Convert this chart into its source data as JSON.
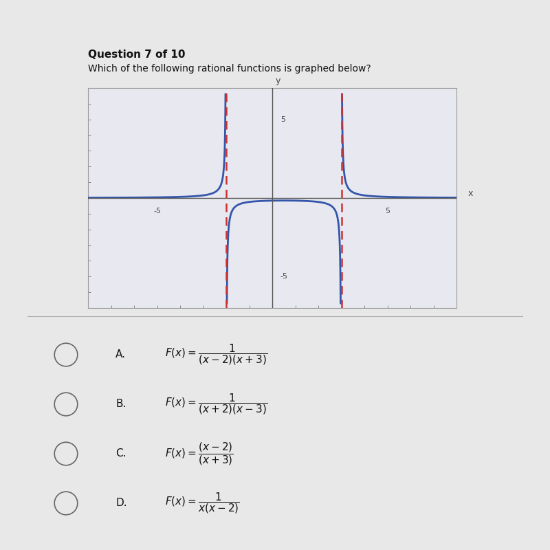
{
  "title": "Question 7 of 10",
  "subtitle": "Which of the following rational functions is graphed below?",
  "xlim": [
    -8,
    8
  ],
  "ylim": [
    -7,
    7
  ],
  "asymptote1": -2,
  "asymptote2": 3,
  "curve_color": "#3355aa",
  "asymptote_color": "#cc3333",
  "background_color": "#e8e8e8",
  "graph_bg": "#e8e8f0",
  "axis_color": "#555555",
  "grid_color": "#cccccc",
  "options_text": [
    "A.  F(x) = 1 / [(x - 2)(x + 3)]",
    "B.  F(x) = 1 / [(x + 2)(x - 3)]",
    "C.  F(x) = (x - 2) / (x + 3)",
    "D.  F(x) = 1 / [x(x - 2)]"
  ],
  "options_latex": [
    "$F(x) = \\dfrac{1}{(x-2)(x+3)}$",
    "$F(x) = \\dfrac{1}{(x+2)(x-3)}$",
    "$F(x) = \\dfrac{(x-2)}{(x+3)}$",
    "$F(x) = \\dfrac{1}{x(x-2)}$"
  ],
  "options_labels": [
    "A.",
    "B.",
    "C.",
    "D."
  ]
}
